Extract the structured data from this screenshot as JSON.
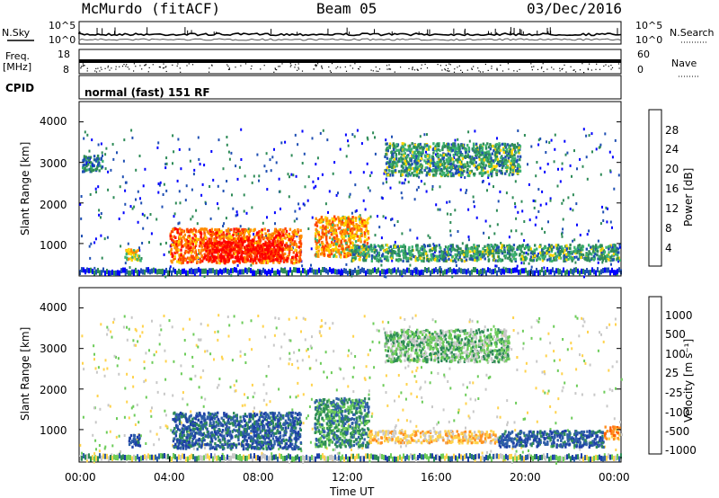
{
  "header": {
    "station": "McMurdo (fitACF)",
    "beam": "Beam 05",
    "date": "03/Dec/2016"
  },
  "side_labels": {
    "nsky": "N.Sky",
    "nsearch": "N.Search",
    "freq_line1": "Freq.",
    "freq_line2": "[MHz]",
    "nave": "Nave",
    "cpid": "CPID"
  },
  "cpid_text": "normal (fast) 151 RF",
  "colors": {
    "power_scale": [
      "#0000ff",
      "#1f4fb3",
      "#2e8b57",
      "#3cb371",
      "#ffd700",
      "#ff8c00",
      "#ff4500",
      "#ff0000"
    ],
    "velocity_scale": [
      "#1e3fa8",
      "#2f5fa8",
      "#2e8b57",
      "#6dcc5a",
      "#c8c8c8",
      "#ffd34d",
      "#ff9020",
      "#ff6000",
      "#ff0000"
    ]
  },
  "chart_data": [
    {
      "type": "line",
      "panel": "noise",
      "left_axis_ticks": [
        "10^5",
        "10^0"
      ],
      "right_axis_ticks": [
        "10^5",
        "10^0"
      ],
      "series": [
        {
          "name": "N.Sky"
        },
        {
          "name": "N.Search"
        }
      ]
    },
    {
      "type": "line",
      "panel": "frequency-nave",
      "left_axis_ticks": [
        "18",
        "8"
      ],
      "right_axis_ticks": [
        "60",
        "0"
      ]
    },
    {
      "type": "heatmap",
      "panel": "power",
      "xlabel": "",
      "ylabel": "Slant Range [km]",
      "y_ticks": [
        "4000",
        "3000",
        "2000",
        "1000"
      ],
      "ylim": [
        200,
        4500
      ],
      "colorbar_label": "Power [dB]",
      "colorbar_ticks": [
        "28",
        "24",
        "20",
        "16",
        "12",
        "8",
        "4"
      ],
      "regions": [
        {
          "t0": 2.0,
          "t1": 2.7,
          "r0": 600,
          "r1": 900,
          "level": 5
        },
        {
          "t0": 4.0,
          "t1": 9.8,
          "r0": 550,
          "r1": 1400,
          "level": 7
        },
        {
          "t0": 5.5,
          "t1": 9.0,
          "r0": 600,
          "r1": 1100,
          "level": 9
        },
        {
          "t0": 10.4,
          "t1": 12.8,
          "r0": 700,
          "r1": 1700,
          "level": 6
        },
        {
          "t0": 12.0,
          "t1": 23.9,
          "r0": 600,
          "r1": 1000,
          "level": 3
        },
        {
          "t0": 13.5,
          "t1": 19.5,
          "r0": 2700,
          "r1": 3500,
          "level": 3
        },
        {
          "t0": 0.1,
          "t1": 1.0,
          "r0": 2800,
          "r1": 3200,
          "level": 2
        }
      ]
    },
    {
      "type": "heatmap",
      "panel": "velocity",
      "xlabel": "Time UT",
      "ylabel": "Slant Range [km]",
      "x_ticks": [
        "00:00",
        "04:00",
        "08:00",
        "12:00",
        "16:00",
        "20:00",
        "00:00"
      ],
      "xlim": [
        0,
        24
      ],
      "y_ticks": [
        "4000",
        "3000",
        "2000",
        "1000"
      ],
      "ylim": [
        200,
        4500
      ],
      "colorbar_label": "Velocity [m s⁻¹]",
      "colorbar_ticks": [
        "1000",
        "500",
        "100",
        "25",
        "-25",
        "-100",
        "-500",
        "-1000"
      ],
      "regions": [
        {
          "t0": 2.1,
          "t1": 2.7,
          "r0": 600,
          "r1": 900,
          "level": 2
        },
        {
          "t0": 4.1,
          "t1": 9.8,
          "r0": 550,
          "r1": 1450,
          "level": 2
        },
        {
          "t0": 10.4,
          "t1": 12.8,
          "r0": 600,
          "r1": 1800,
          "level": 3
        },
        {
          "t0": 12.8,
          "t1": 18.5,
          "r0": 700,
          "r1": 1000,
          "level": 6
        },
        {
          "t0": 18.5,
          "t1": 23.2,
          "r0": 600,
          "r1": 1000,
          "level": 2
        },
        {
          "t0": 23.2,
          "t1": 23.9,
          "r0": 800,
          "r1": 1100,
          "level": 7
        },
        {
          "t0": 13.5,
          "t1": 19.0,
          "r0": 2700,
          "r1": 3500,
          "level": 4
        }
      ]
    }
  ]
}
